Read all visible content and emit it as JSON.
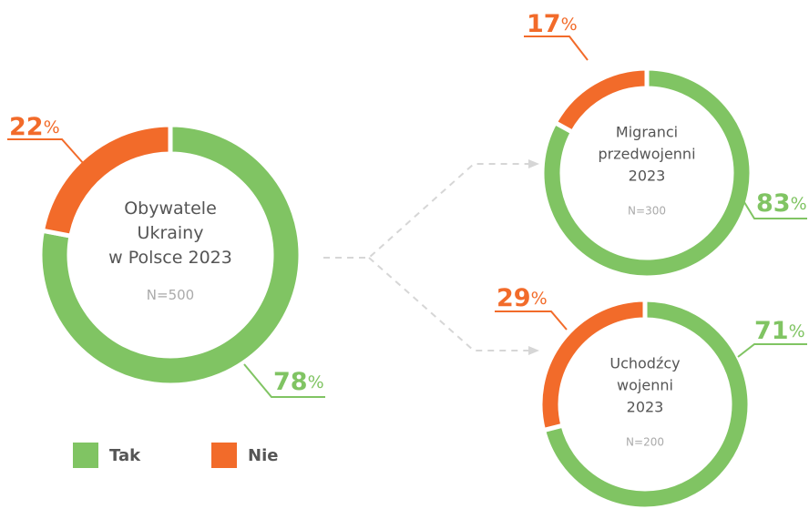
{
  "chart_data": [
    {
      "type": "donut",
      "title_lines": [
        "Obywatele",
        "Ukrainy",
        "w Polsce 2023"
      ],
      "subtitle": "N=500",
      "categories": [
        "Tak",
        "Nie"
      ],
      "values": [
        78,
        22
      ],
      "value_labels": [
        "78%",
        "22%"
      ],
      "colors": [
        "#80c463",
        "#f26b2a"
      ]
    },
    {
      "type": "donut",
      "title_lines": [
        "Migranci",
        "przedwojenni",
        "2023"
      ],
      "subtitle": "N=300",
      "categories": [
        "Tak",
        "Nie"
      ],
      "values": [
        83,
        17
      ],
      "value_labels": [
        "83%",
        "17%"
      ],
      "colors": [
        "#80c463",
        "#f26b2a"
      ]
    },
    {
      "type": "donut",
      "title_lines": [
        "Uchodźcy",
        "wojenni",
        "2023"
      ],
      "subtitle": "N=200",
      "categories": [
        "Tak",
        "Nie"
      ],
      "values": [
        71,
        29
      ],
      "value_labels": [
        "71%",
        "29%"
      ],
      "colors": [
        "#80c463",
        "#f26b2a"
      ]
    }
  ],
  "legend": {
    "items": [
      "Tak",
      "Nie"
    ],
    "colors": [
      "#80c463",
      "#f26b2a"
    ]
  }
}
